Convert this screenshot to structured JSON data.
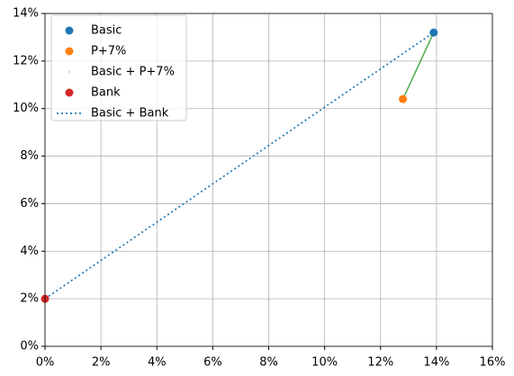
{
  "chart_data": {
    "type": "scatter",
    "series": [
      {
        "name": "Basic",
        "type": "scatter",
        "color": "#1f77b4",
        "x": [
          13.9
        ],
        "y": [
          13.2
        ]
      },
      {
        "name": "P+7%",
        "type": "scatter",
        "color": "#ff7f0e",
        "x": [
          12.8
        ],
        "y": [
          10.4
        ]
      },
      {
        "name": "Basic + P+7%",
        "type": "line",
        "linestyle": "solid",
        "color": "#2ca02c",
        "x": [
          12.8,
          13.9
        ],
        "y": [
          10.4,
          13.2
        ]
      },
      {
        "name": "Bank",
        "type": "scatter",
        "color": "#d62728",
        "x": [
          0
        ],
        "y": [
          2
        ]
      },
      {
        "name": "Basic + Bank",
        "type": "line",
        "linestyle": "dotted",
        "color": "#1f77b4",
        "x": [
          0,
          13.9
        ],
        "y": [
          2,
          13.2
        ]
      }
    ],
    "xlim": [
      0,
      16
    ],
    "ylim": [
      0,
      14
    ],
    "xticks": [
      {
        "value": 0,
        "label": "0%"
      },
      {
        "value": 2,
        "label": "2%"
      },
      {
        "value": 4,
        "label": "4%"
      },
      {
        "value": 6,
        "label": "6%"
      },
      {
        "value": 8,
        "label": "8%"
      },
      {
        "value": 10,
        "label": "10%"
      },
      {
        "value": 12,
        "label": "12%"
      },
      {
        "value": 14,
        "label": "14%"
      },
      {
        "value": 16,
        "label": "16%"
      }
    ],
    "yticks": [
      {
        "value": 0,
        "label": "0%"
      },
      {
        "value": 2,
        "label": "2%"
      },
      {
        "value": 4,
        "label": "4%"
      },
      {
        "value": 6,
        "label": "6%"
      },
      {
        "value": 8,
        "label": "8%"
      },
      {
        "value": 10,
        "label": "10%"
      },
      {
        "value": 12,
        "label": "12%"
      },
      {
        "value": 14,
        "label": "14%"
      }
    ],
    "grid": true,
    "legend": "upper left"
  }
}
